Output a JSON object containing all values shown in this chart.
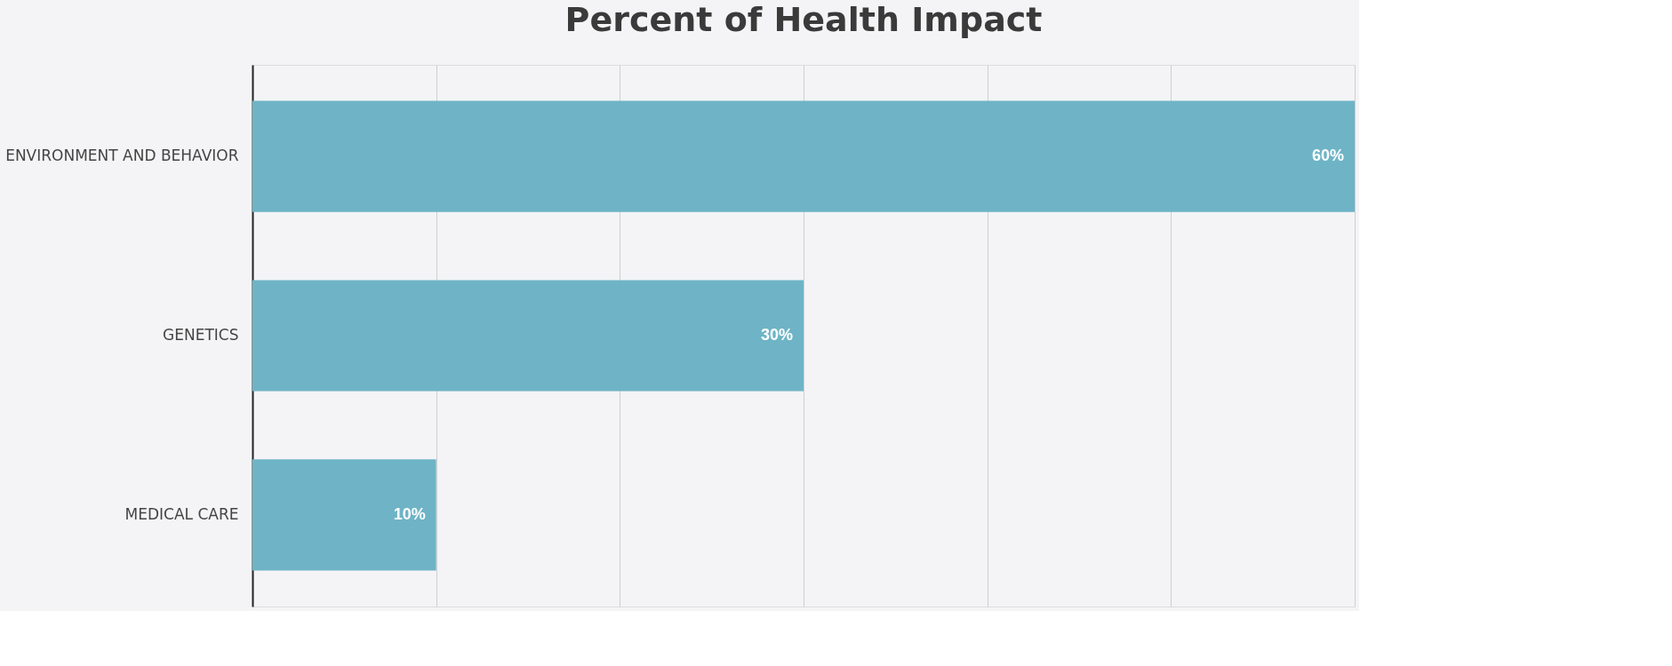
{
  "chart_data": {
    "type": "bar",
    "orientation": "horizontal",
    "title": "Percent of Health Impact",
    "categories": [
      "ENVIRONMENT AND BEHAVIOR",
      "GENETICS",
      "MEDICAL CARE"
    ],
    "values": [
      60,
      30,
      10
    ],
    "color": "#6eb4c6",
    "value_labels": [
      "60%",
      "30%",
      "10%"
    ],
    "xlim": [
      0,
      60
    ],
    "xticks": [
      {
        "value": 10,
        "label": null
      },
      {
        "value": 20,
        "label": null
      },
      {
        "value": 30,
        "label": null
      },
      {
        "value": 40,
        "label": null
      },
      {
        "value": 50,
        "label": null
      },
      {
        "value": 60,
        "label": null
      }
    ],
    "grid": "x",
    "tick_labels": "y"
  }
}
